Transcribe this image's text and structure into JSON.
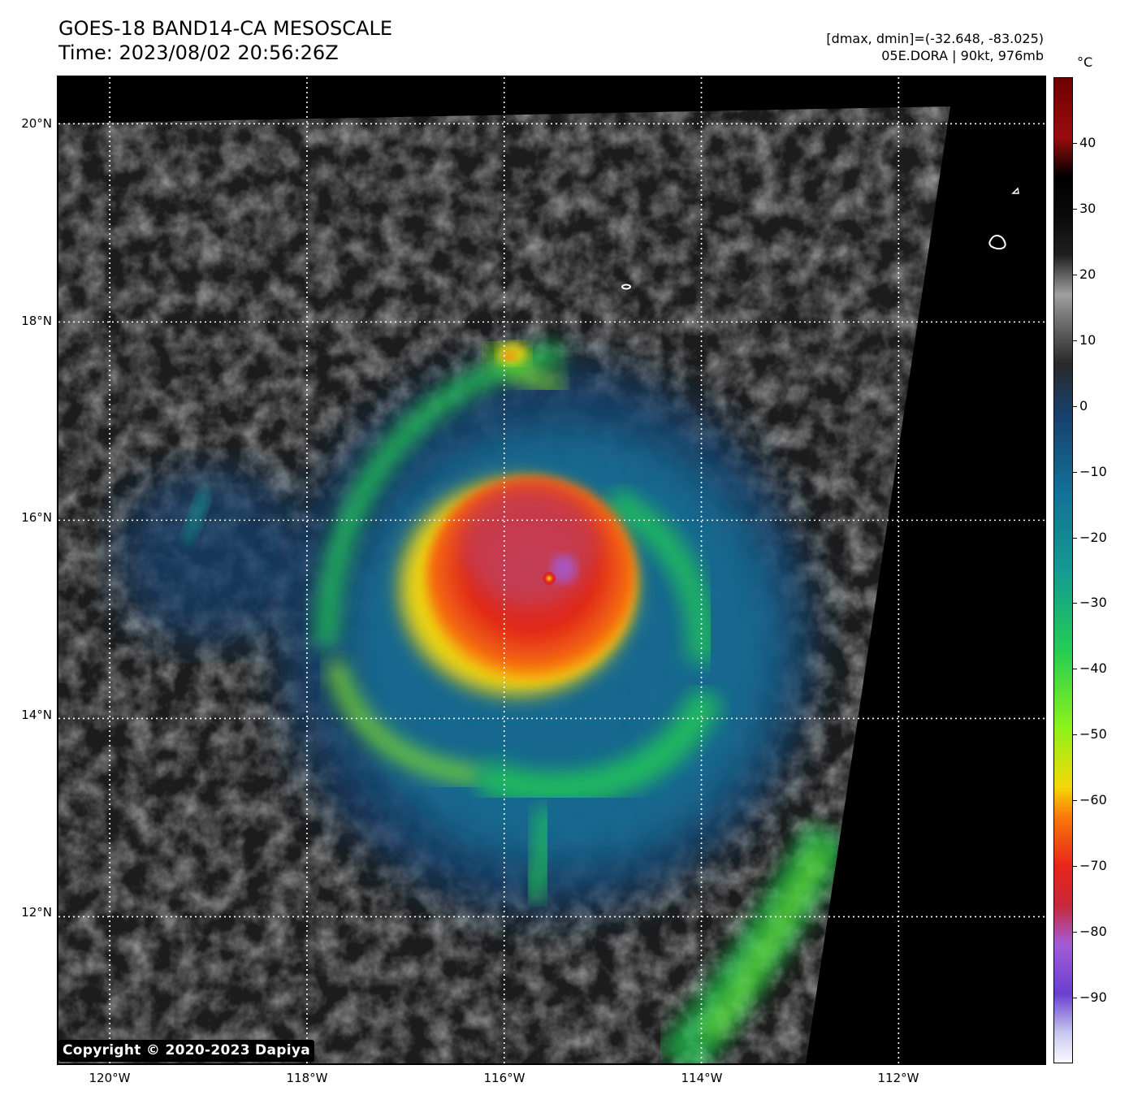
{
  "header": {
    "title_line1": "GOES-18 BAND14-CA MESOSCALE",
    "title_line2": "Time: 2023/08/02 20:56:26Z",
    "info_line1": "[dmax, dmin]=(-32.648, -83.025)",
    "info_line2": "05E.DORA | 90kt, 976mb"
  },
  "map": {
    "lat_labels": [
      "20°N",
      "18°N",
      "16°N",
      "14°N",
      "12°N"
    ],
    "lon_labels": [
      "120°W",
      "118°W",
      "116°W",
      "114°W",
      "112°W"
    ],
    "lat_values": [
      20,
      18,
      16,
      14,
      12
    ],
    "lon_values": [
      -120,
      -118,
      -116,
      -114,
      -112
    ],
    "extent": {
      "lon_min": -120.52,
      "lon_max": -110.52,
      "lat_min": 10.52,
      "lat_max": 20.47
    },
    "storm_center": {
      "lon": -115.55,
      "lat": 15.35
    },
    "copyright": "Copyright © 2020-2023 Dapiya"
  },
  "colorbar": {
    "unit": "°C",
    "labels": [
      "40",
      "30",
      "20",
      "10",
      "0",
      "−10",
      "−20",
      "−30",
      "−40",
      "−50",
      "−60",
      "−70",
      "−80",
      "−90"
    ],
    "values": [
      40,
      30,
      20,
      10,
      0,
      -10,
      -20,
      -30,
      -40,
      -50,
      -60,
      -70,
      -80,
      -90
    ],
    "range": [
      -100,
      50
    ],
    "colors": [
      "#fafaff",
      "#c8c8f0",
      "#6a3fd0",
      "#a45bd8",
      "#c8283a",
      "#e8261a",
      "#f97a08",
      "#f5d80a",
      "#8df21a",
      "#22cc55",
      "#159a94",
      "#137096",
      "#163f6c",
      "#2a2a2a",
      "#7a7a7a",
      "#a0a0a0",
      "#202020",
      "#0a0a0a",
      "#000000",
      "#9b0c0c",
      "#6e0000"
    ]
  }
}
